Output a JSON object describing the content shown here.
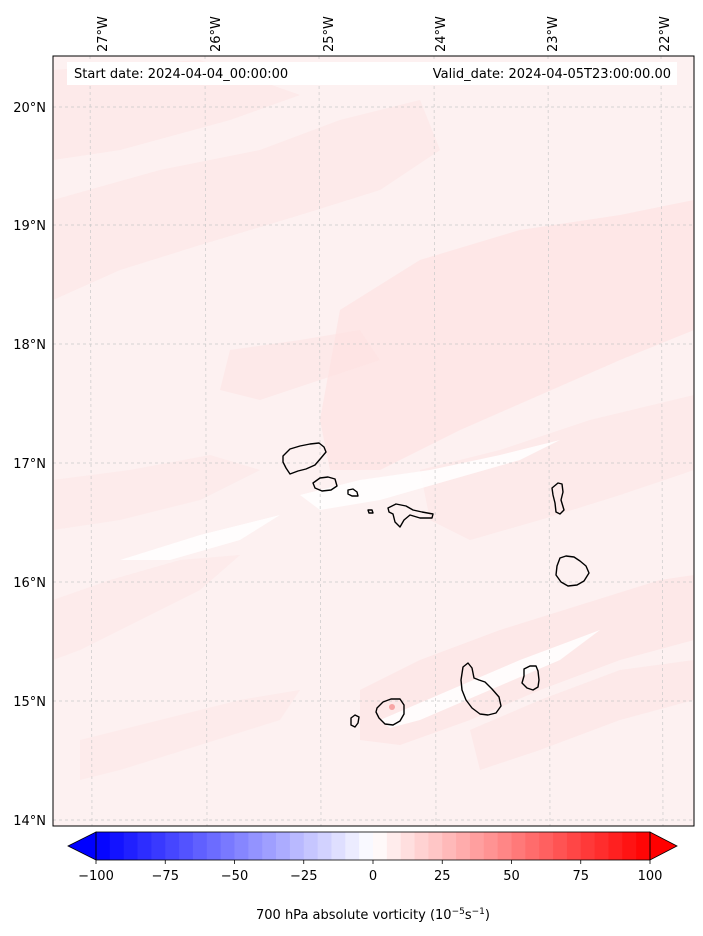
{
  "header": {
    "start_label": "Start date: 2024-04-04_00:00:00",
    "valid_label": "Valid_date: 2024-04-05T23:00:00.00"
  },
  "axes": {
    "lon_ticks": [
      "27°W",
      "26°W",
      "25°W",
      "24°W",
      "23°W",
      "22°W"
    ],
    "lat_ticks": [
      "20°N",
      "19°N",
      "18°N",
      "17°N",
      "16°N",
      "15°N",
      "14°N"
    ]
  },
  "colorbar": {
    "ticks": [
      "−100",
      "−75",
      "−50",
      "−25",
      "0",
      "25",
      "50",
      "75",
      "100"
    ],
    "tick_values": [
      -100,
      -75,
      -50,
      -25,
      0,
      25,
      50,
      75,
      100
    ],
    "min": -100,
    "max": 100,
    "label_main": "700 hPa absolute vorticity (10",
    "label_exp1": "−5",
    "label_mid": "s",
    "label_exp2": "−1",
    "label_end": ")",
    "neg_color": "#0000ff",
    "zero_color": "#ffffff",
    "pos_color": "#ff0000"
  },
  "colors": {
    "field_background": "#fdf1f1",
    "field_band": "#fde2e2",
    "coastline": "#000000"
  }
}
